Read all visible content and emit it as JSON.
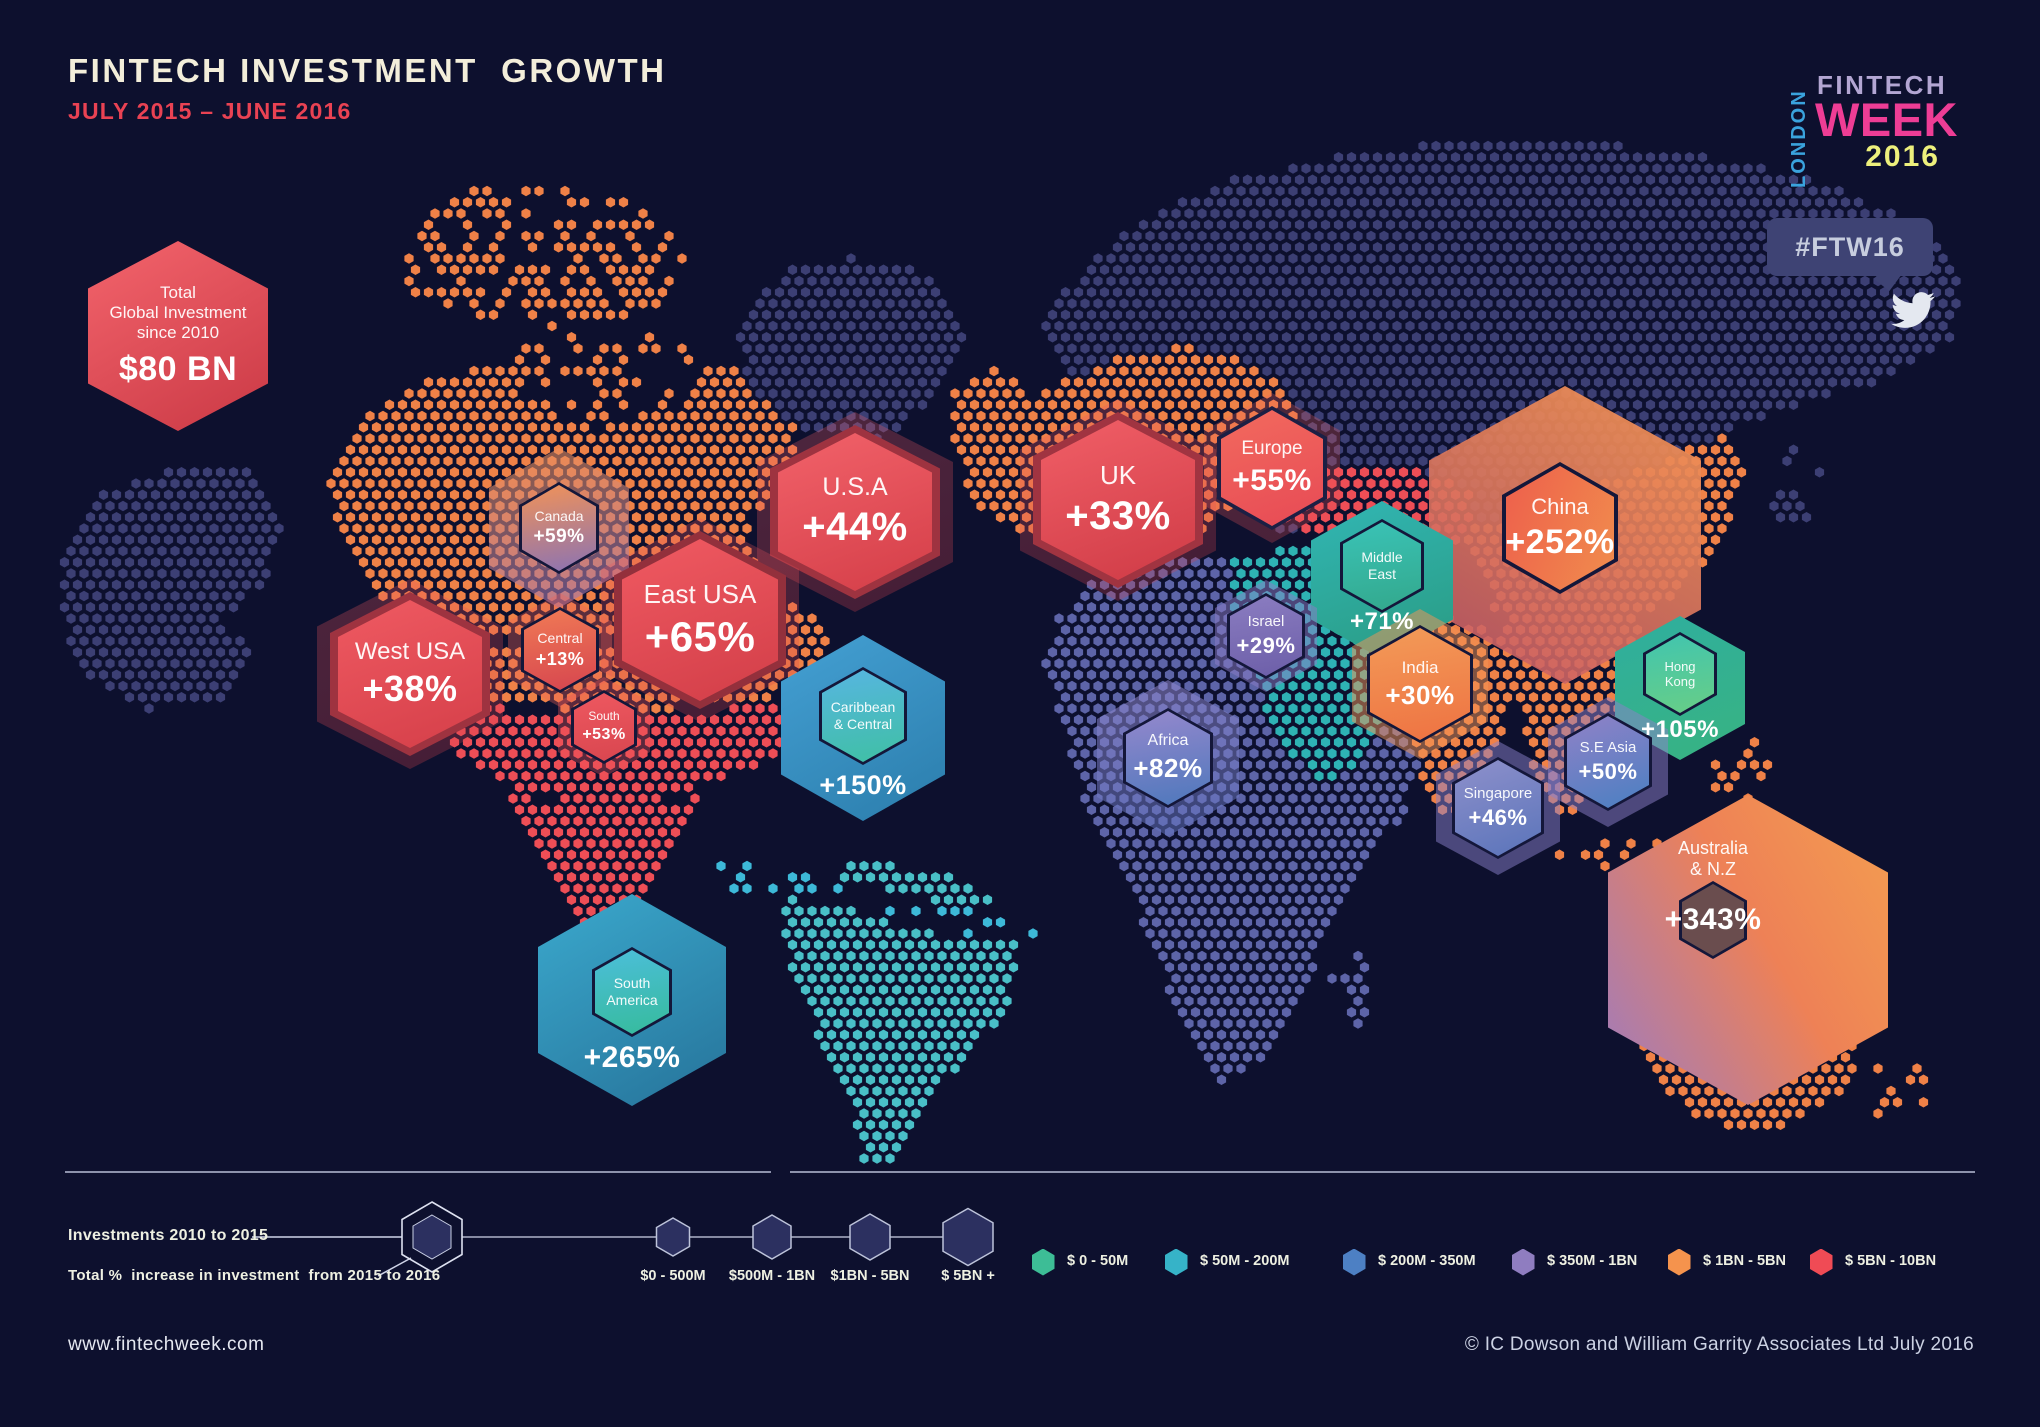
{
  "header": {
    "title": "FINTECH INVESTMENT  GROWTH",
    "subtitle": "JULY 2015 – JUNE 2016"
  },
  "logo": {
    "london": "LONDON",
    "fintech": "FINTECH",
    "week": "WEEK",
    "year": "2016"
  },
  "social": {
    "hashtag": "#FTW16"
  },
  "total_hex": {
    "line1": "Total",
    "line2": "Global Investment",
    "line3": "since 2010",
    "value": "$80 BN",
    "color_from": "#f3646c",
    "color_to": "#ca3945"
  },
  "chart_data": {
    "type": "map-infographic",
    "title": "FINTECH INVESTMENT GROWTH",
    "period": "JULY 2015 – JUNE 2016",
    "total_global_investment_since_2010": "$80 BN",
    "metric": "Total % increase in investment from 2015 to 2016",
    "regions": [
      {
        "name": "Canada",
        "growth_pct": 59
      },
      {
        "name": "U.S.A",
        "growth_pct": 44
      },
      {
        "name": "East USA",
        "growth_pct": 65
      },
      {
        "name": "West USA",
        "growth_pct": 38
      },
      {
        "name": "Central",
        "growth_pct": 13
      },
      {
        "name": "South",
        "growth_pct": 53
      },
      {
        "name": "Caribbean & Central",
        "growth_pct": 150
      },
      {
        "name": "South America",
        "growth_pct": 265
      },
      {
        "name": "UK",
        "growth_pct": 33
      },
      {
        "name": "Europe",
        "growth_pct": 55
      },
      {
        "name": "China",
        "growth_pct": 252
      },
      {
        "name": "Middle East",
        "growth_pct": 71
      },
      {
        "name": "Israel",
        "growth_pct": 29
      },
      {
        "name": "India",
        "growth_pct": 30
      },
      {
        "name": "Hong Kong",
        "growth_pct": 105
      },
      {
        "name": "Africa",
        "growth_pct": 82
      },
      {
        "name": "S.E Asia",
        "growth_pct": 50
      },
      {
        "name": "Singapore",
        "growth_pct": 46
      },
      {
        "name": "Australia & N.Z",
        "growth_pct": 343
      }
    ],
    "size_scale": [
      "$0 - 500M",
      "$500M - 1BN",
      "$1BN - 5BN",
      "$ 5BN +"
    ],
    "color_scale": [
      {
        "range": "$ 0 - 50M",
        "color": "#3dbd96"
      },
      {
        "range": "$ 50M - 200M",
        "color": "#36b3c8"
      },
      {
        "range": "$ 200M - 350M",
        "color": "#4d80c4"
      },
      {
        "range": "$ 350M - 1BN",
        "color": "#8f7dc0"
      },
      {
        "range": "$ 1BN - 5BN",
        "color": "#f5934d"
      },
      {
        "range": "$ 5BN - 10BN",
        "color": "#f04b55"
      }
    ]
  },
  "display_regions": [
    {
      "id": "canada",
      "labels": [
        "Canada"
      ],
      "value": "+59%",
      "halo": "linear-gradient(170deg, rgba(242,146,86,0.6), rgba(150,116,186,0.6))",
      "fill": "linear-gradient(170deg,#f19258,#8b73b3)"
    },
    {
      "id": "usa",
      "labels": [
        "U.S.A"
      ],
      "value": "+44%",
      "ring": "#9e3340",
      "fill": "linear-gradient(160deg,#f2626a,#d43e48)"
    },
    {
      "id": "east_usa",
      "labels": [
        "East USA"
      ],
      "value": "+65%",
      "ring": "#93303c",
      "fill": "linear-gradient(160deg,#f05a62,#d23e48)"
    },
    {
      "id": "west_usa",
      "labels": [
        "West USA"
      ],
      "value": "+38%",
      "ring": "#9e3340",
      "fill": "linear-gradient(160deg,#ef5a62,#d53f49)"
    },
    {
      "id": "central",
      "labels": [
        "Central"
      ],
      "value": "+13%",
      "halo": "rgba(240,100,90,0.35)",
      "fill": "linear-gradient(170deg,#f07a55,#d6454f)"
    },
    {
      "id": "south",
      "labels": [
        "South"
      ],
      "value": "+53%",
      "halo": "rgba(238,85,90,0.35)",
      "fill": "linear-gradient(170deg,#ee5860,#d8464f)"
    },
    {
      "id": "caribbean",
      "labels": [
        "Caribbean",
        "& Central"
      ],
      "value": "+150%",
      "halo": "linear-gradient(150deg,#44a0d3,#2b7dac)",
      "fill": "linear-gradient(170deg,#57b5e1,#3fc0a4)"
    },
    {
      "id": "south_america",
      "labels": [
        "South",
        "America"
      ],
      "value": "+265%",
      "halo": "linear-gradient(150deg,#3ba9cd,#26739a)",
      "fill": "linear-gradient(170deg,#4cbeda,#36bb9c)"
    },
    {
      "id": "uk",
      "labels": [
        "UK"
      ],
      "value": "+33%",
      "ring": "#a03441",
      "fill": "linear-gradient(160deg,#f15f67,#cf3b46)"
    },
    {
      "id": "europe",
      "labels": [
        "Europe"
      ],
      "value": "+55%",
      "ring": "#1c1f44",
      "fill": "linear-gradient(160deg,#f26a5e,#e74a55)"
    },
    {
      "id": "china",
      "labels": [
        "China"
      ],
      "value": "+252%",
      "halo": "linear-gradient(210deg, rgba(243,148,82,0.95), rgba(196,88,104,0.88))",
      "fill": "linear-gradient(110deg,#ee5f4c,#f08d4d)"
    },
    {
      "id": "middle_east",
      "labels": [
        "Middle",
        "East"
      ],
      "value": "+71%",
      "halo": "linear-gradient(160deg,#31b6b4,#2a9b82)",
      "fill": "linear-gradient(170deg,#3ac3b7,#33a88c)"
    },
    {
      "id": "israel",
      "labels": [
        "Israel"
      ],
      "value": "+29%",
      "halo": "rgba(140,124,198,0.5)",
      "fill": "linear-gradient(170deg,#8b7dc1,#6c5ea8)"
    },
    {
      "id": "india",
      "labels": [
        "India"
      ],
      "value": "+30%",
      "halo": "rgba(243,150,86,0.5)",
      "fill": "linear-gradient(170deg,#f39b58,#ee7242)"
    },
    {
      "id": "hong_kong",
      "labels": [
        "Hong",
        "Kong"
      ],
      "value": "+105%",
      "halo": "linear-gradient(160deg,#2fae9f,#38b381)",
      "fill": "linear-gradient(170deg,#41c5af,#68ce86)"
    },
    {
      "id": "africa",
      "labels": [
        "Africa"
      ],
      "value": "+82%",
      "halo": "linear-gradient(170deg, rgba(150,138,208,0.55), rgba(95,115,192,0.5))",
      "fill": "linear-gradient(170deg,#9588cd,#4e78bc)"
    },
    {
      "id": "se_asia",
      "labels": [
        "S.E Asia"
      ],
      "value": "+50%",
      "halo": "rgba(142,128,202,0.5)",
      "fill": "linear-gradient(160deg,#9081c7,#4a80c2)"
    },
    {
      "id": "singapore",
      "labels": [
        "Singapore"
      ],
      "value": "+46%",
      "halo": "rgba(138,128,202,0.5)",
      "fill": "linear-gradient(160deg,#8e90cb,#5a74ba)"
    },
    {
      "id": "australia",
      "labels": [
        "Australia",
        "& N.Z"
      ],
      "value": "+343%",
      "halo": "linear-gradient(240deg,#f39b51 5%,#ee8156 45%,#a87cb2 92%)",
      "fill": "rgba(246,166,110,0.38)"
    }
  ],
  "legend": {
    "note1": "Investments 2010 to 2015",
    "note2": "Total %  increase in investment  from 2015 to 2016",
    "sizes": [
      "$0 - 500M",
      "$500M - 1BN",
      "$1BN - 5BN",
      "$ 5BN +"
    ],
    "colors": [
      {
        "label": "$ 0 - 50M",
        "color": "#3dbd96"
      },
      {
        "label": "$ 50M - 200M",
        "color": "#36b3c8"
      },
      {
        "label": "$ 200M - 350M",
        "color": "#4d80c4"
      },
      {
        "label": "$ 350M - 1BN",
        "color": "#8f7dc0"
      },
      {
        "label": "$ 1BN - 5BN",
        "color": "#f5934d"
      },
      {
        "label": "$ 5BN - 10BN",
        "color": "#f04b55"
      }
    ]
  },
  "map_dot_colors": {
    "navy": "#3c3f74",
    "orange": "#ef8147",
    "red": "#ee4e56",
    "cyan": "#3db9d8",
    "teal": "#49bfc7",
    "teal2": "#2eb2b4",
    "purple": "#5d64a8"
  },
  "footer": {
    "website": "www.fintechweek.com",
    "copyright": "© IC Dowson and William Garrity Associates Ltd July 2016"
  }
}
